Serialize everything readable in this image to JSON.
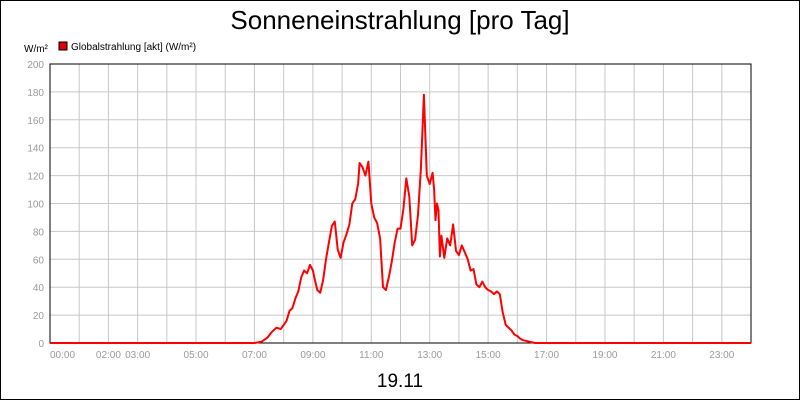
{
  "chart_data": {
    "type": "line",
    "title": "Sonneneinstrahlung [pro Tag]",
    "date_label": "19.11",
    "ylabel": "W/m²",
    "ylim": [
      0,
      200
    ],
    "y_ticks": [
      "0",
      "20",
      "40",
      "60",
      "80",
      "100",
      "120",
      "140",
      "160",
      "180",
      "200"
    ],
    "xlim": [
      0,
      24
    ],
    "x_ticks": [
      {
        "label": "00:00",
        "value": 0
      },
      {
        "label": "02:00",
        "value": 2
      },
      {
        "label": "03:00",
        "value": 3
      },
      {
        "label": "05:00",
        "value": 5
      },
      {
        "label": "07:00",
        "value": 7
      },
      {
        "label": "09:00",
        "value": 9
      },
      {
        "label": "11:00",
        "value": 11
      },
      {
        "label": "13:00",
        "value": 13
      },
      {
        "label": "15:00",
        "value": 15
      },
      {
        "label": "17:00",
        "value": 17
      },
      {
        "label": "19:00",
        "value": 19
      },
      {
        "label": "21:00",
        "value": 21
      },
      {
        "label": "23:00",
        "value": 23
      }
    ],
    "grid": true,
    "legend": {
      "position": "top-left"
    },
    "series": [
      {
        "name": "Globalstrahlung [akt] (W/m²)",
        "color": "#ff0000",
        "x": [
          0,
          7.0,
          7.25,
          7.45,
          7.6,
          7.75,
          7.9,
          8.0,
          8.1,
          8.2,
          8.3,
          8.4,
          8.5,
          8.6,
          8.7,
          8.8,
          8.9,
          9.0,
          9.05,
          9.15,
          9.25,
          9.35,
          9.45,
          9.55,
          9.65,
          9.75,
          9.85,
          9.95,
          10.05,
          10.15,
          10.25,
          10.35,
          10.45,
          10.55,
          10.6,
          10.7,
          10.8,
          10.9,
          11.0,
          11.1,
          11.2,
          11.3,
          11.4,
          11.5,
          11.6,
          11.7,
          11.8,
          11.9,
          12.0,
          12.1,
          12.2,
          12.3,
          12.4,
          12.5,
          12.6,
          12.7,
          12.8,
          12.9,
          13.0,
          13.1,
          13.15,
          13.2,
          13.25,
          13.3,
          13.35,
          13.4,
          13.5,
          13.6,
          13.7,
          13.8,
          13.9,
          14.0,
          14.1,
          14.2,
          14.3,
          14.4,
          14.5,
          14.6,
          14.7,
          14.8,
          14.9,
          15.0,
          15.1,
          15.2,
          15.3,
          15.4,
          15.5,
          15.6,
          15.7,
          15.8,
          15.9,
          16.0,
          16.1,
          16.2,
          16.4,
          16.6,
          16.8,
          17.0,
          17.3,
          24
        ],
        "values": [
          0,
          0,
          1,
          4,
          8,
          11,
          10,
          13,
          16,
          23,
          25,
          32,
          37,
          47,
          52,
          50,
          56,
          52,
          47,
          38,
          36,
          45,
          60,
          72,
          84,
          87,
          67,
          61,
          72,
          78,
          85,
          100,
          103,
          114,
          129,
          126,
          120,
          130,
          100,
          90,
          86,
          75,
          40,
          38,
          47,
          58,
          72,
          82,
          82,
          96,
          118,
          105,
          70,
          74,
          92,
          125,
          178,
          120,
          114,
          122,
          110,
          88,
          100,
          95,
          62,
          77,
          61,
          75,
          70,
          85,
          66,
          63,
          70,
          65,
          60,
          52,
          53,
          42,
          40,
          44,
          40,
          38,
          37,
          35,
          37,
          35,
          22,
          13,
          11,
          9,
          6,
          5,
          3,
          2,
          1,
          0,
          0,
          0,
          0,
          0
        ]
      }
    ]
  }
}
